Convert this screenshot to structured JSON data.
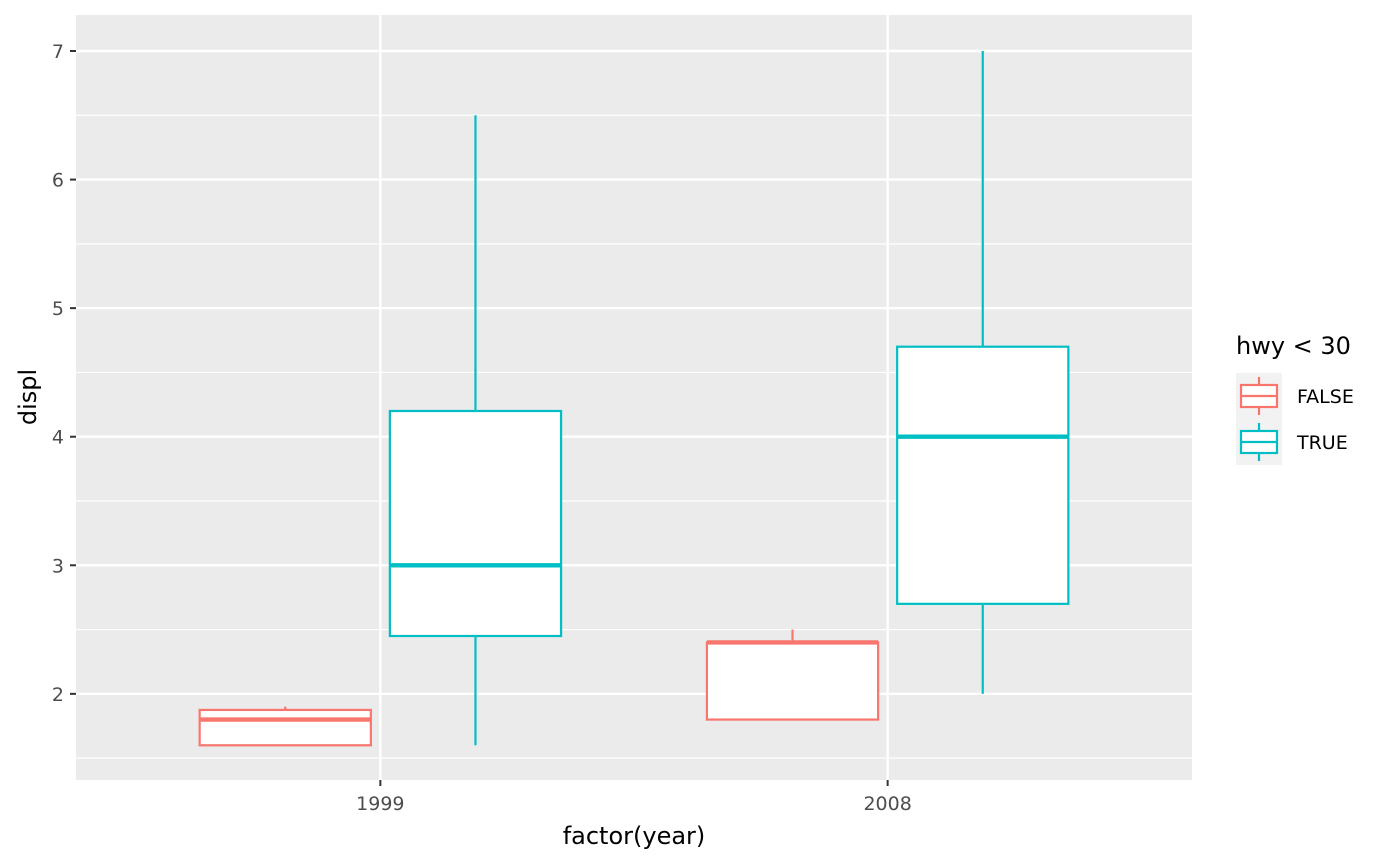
{
  "chart_data": {
    "type": "boxplot",
    "xlabel": "factor(year)",
    "ylabel": "displ",
    "categories": [
      "1999",
      "2008"
    ],
    "ylim": [
      1.33,
      7.28
    ],
    "yticks": [
      2,
      3,
      4,
      5,
      6,
      7
    ],
    "grid": true,
    "legend": {
      "title": "hwy < 30",
      "position": "right",
      "entries": [
        "FALSE",
        "TRUE"
      ]
    },
    "series": [
      {
        "name": "FALSE",
        "color": "#F8766D",
        "boxes": [
          {
            "category": "1999",
            "min": 1.6,
            "q1": 1.6,
            "median": 1.8,
            "q3": 1.875,
            "max": 1.9
          },
          {
            "category": "2008",
            "min": 1.8,
            "q1": 1.8,
            "median": 2.4,
            "q3": 2.4,
            "max": 2.5
          }
        ]
      },
      {
        "name": "TRUE",
        "color": "#00BFC4",
        "boxes": [
          {
            "category": "1999",
            "min": 1.6,
            "q1": 2.45,
            "median": 3.0,
            "q3": 4.2,
            "max": 6.5
          },
          {
            "category": "2008",
            "min": 2.0,
            "q1": 2.7,
            "median": 4.0,
            "q3": 4.7,
            "max": 7.0
          }
        ]
      }
    ]
  }
}
